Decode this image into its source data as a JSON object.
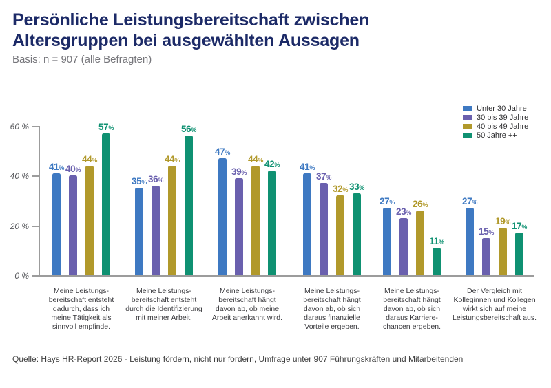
{
  "header": {
    "title_line1": "Persönliche Leistungsbereitschaft zwischen",
    "title_line2": "Altersgruppen bei ausgewählten Aussagen",
    "subtitle": "Basis: n = 907 (alle Befragten)",
    "title_color": "#1c2a67"
  },
  "legend": {
    "position": "top-right",
    "items": [
      {
        "label": "Unter 30 Jahre",
        "color": "#3E79C2"
      },
      {
        "label": "30 bis 39 Jahre",
        "color": "#6A60AE"
      },
      {
        "label": "40 bis 49 Jahre",
        "color": "#B1992B"
      },
      {
        "label": "50 Jahre ++",
        "color": "#0F9172"
      }
    ]
  },
  "chart_data": {
    "type": "bar",
    "title": "Persönliche Leistungsbereitschaft zwischen Altersgruppen bei ausgewählten Aussagen",
    "subtitle": "Basis: n = 907 (alle Befragten)",
    "unit": "%",
    "xlabel": "",
    "ylabel": "",
    "ylim": [
      0,
      60
    ],
    "ytick_values": [
      0,
      20,
      40,
      60
    ],
    "ytick_labels": [
      "0 %",
      "20 %",
      "40 %",
      "60 %"
    ],
    "grid": false,
    "legend_position": "top-right",
    "value_label_suffix": "%",
    "categories": [
      "Meine Leistungsbereitschaft entsteht dadurch, dass ich meine Tätigkeit als sinnvoll empfinde.",
      "Meine Leistungsbereitschaft entsteht durch die Identifizierung mit meiner Arbeit.",
      "Meine Leistungsbereitschaft hängt davon ab, ob meine Arbeit anerkannt wird.",
      "Meine Leistungsbereitschaft hängt davon ab, ob sich daraus finanzielle Vorteile ergeben.",
      "Meine Leistungsbereitschaft hängt davon ab, ob sich daraus Karrierechancen ergeben.",
      "Der Vergleich mit Kolleginnen und Kollegen wirkt sich auf meine Leistungsbereitschaft aus."
    ],
    "category_lines": [
      [
        "Meine Leistungs-",
        "bereitschaft entsteht",
        "dadurch, dass ich",
        "meine Tätigkeit als",
        "sinnvoll empfinde."
      ],
      [
        "Meine Leistungs-",
        "bereitschaft entsteht",
        "durch die Identifizierung",
        "mit meiner Arbeit."
      ],
      [
        "Meine Leistungs-",
        "bereitschaft hängt",
        "davon ab, ob meine",
        "Arbeit anerkannt wird."
      ],
      [
        "Meine Leistungs-",
        "bereitschaft hängt",
        "davon ab, ob sich",
        "daraus finanzielle",
        "Vorteile ergeben."
      ],
      [
        "Meine Leistungs-",
        "bereitschaft hängt",
        "davon ab, ob sich",
        "daraus Karriere-",
        "chancen ergeben."
      ],
      [
        "Der Vergleich mit",
        "Kolleginnen und Kollegen",
        "wirkt sich auf meine",
        "Leistungsbereitschaft aus."
      ]
    ],
    "series": [
      {
        "name": "Unter 30 Jahre",
        "color": "#3E79C2",
        "values": [
          41,
          35,
          47,
          41,
          27,
          27
        ]
      },
      {
        "name": "30 bis 39 Jahre",
        "color": "#6A60AE",
        "values": [
          40,
          36,
          39,
          37,
          23,
          15
        ]
      },
      {
        "name": "40 bis 49 Jahre",
        "color": "#B1992B",
        "values": [
          44,
          44,
          44,
          32,
          26,
          19
        ]
      },
      {
        "name": "50 Jahre ++",
        "color": "#0F9172",
        "values": [
          57,
          56,
          42,
          33,
          11,
          17
        ]
      }
    ]
  },
  "footer": {
    "source": "Quelle: Hays HR-Report 2026 - Leistung fördern, nicht nur fordern, Umfrage unter 907 Führungskräften und Mitarbeitenden"
  }
}
